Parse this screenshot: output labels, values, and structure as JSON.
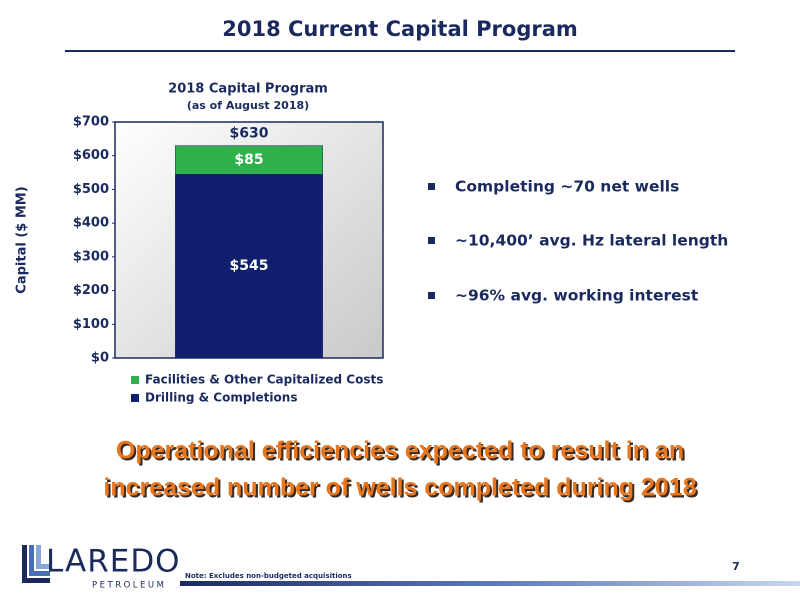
{
  "slide": {
    "title": "2018 Current Capital Program",
    "bullets": [
      "Completing ~70 net wells",
      "~10,400’ avg. Hz lateral length",
      "~96% avg. working interest"
    ],
    "headline": [
      "Operational efficiencies expected to result in an",
      "increased number of wells completed during 2018"
    ],
    "note": "Note: Excludes non-budgeted acquisitions",
    "page_number": "7",
    "logo": {
      "name": "LAREDO",
      "sub": "PETROLEUM"
    }
  },
  "chart_data": {
    "type": "stacked_bar",
    "title": "2018 Capital Program",
    "subtitle": "(as of August 2018)",
    "y_label": "Capital ($ MM)",
    "categories": [
      null
    ],
    "series": [
      {
        "name": "Drilling & Completions",
        "color": "#0f1f6e",
        "values": [
          545
        ],
        "value_labels": [
          "$545"
        ]
      },
      {
        "name": "Facilities & Other Capitalized Costs",
        "color": "#2fb04a",
        "values": [
          85
        ],
        "value_labels": [
          "$85"
        ]
      }
    ],
    "totals": [
      630
    ],
    "total_labels": [
      "$630"
    ],
    "ylim": [
      0,
      700
    ],
    "yticks": [
      {
        "value": 0,
        "label": "$0"
      },
      {
        "value": 100,
        "label": "$100"
      },
      {
        "value": 200,
        "label": "$200"
      },
      {
        "value": 300,
        "label": "$300"
      },
      {
        "value": 400,
        "label": "$400"
      },
      {
        "value": 500,
        "label": "$500"
      },
      {
        "value": 600,
        "label": "$600"
      },
      {
        "value": 700,
        "label": "$700"
      }
    ]
  }
}
